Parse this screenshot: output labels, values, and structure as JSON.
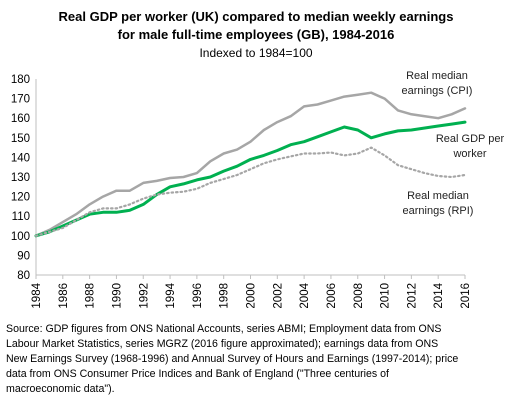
{
  "chart_data": {
    "type": "line",
    "title_lines": [
      "Real GDP per worker (UK) compared to median weekly earnings",
      "for male full-time employees (GB), 1984-2016"
    ],
    "subtitle": "Indexed to 1984=100",
    "x_ticks": [
      "1984",
      "1986",
      "1988",
      "1990",
      "1992",
      "1994",
      "1996",
      "1998",
      "2000",
      "2002",
      "2004",
      "2006",
      "2008",
      "2010",
      "2012",
      "2014",
      "2016"
    ],
    "y_ticks": [
      "80",
      "90",
      "100",
      "110",
      "120",
      "130",
      "140",
      "150",
      "160",
      "170",
      "180"
    ],
    "xlim": [
      1984,
      2016
    ],
    "ylim": [
      80,
      180
    ],
    "grid": false,
    "series": [
      {
        "name_lines": [
          "Real median",
          "earnings (CPI)"
        ],
        "color": "#a6a6a6",
        "style": "solid",
        "x": [
          1984,
          1985,
          1986,
          1987,
          1988,
          1989,
          1990,
          1991,
          1992,
          1993,
          1994,
          1995,
          1996,
          1997,
          1998,
          1999,
          2000,
          2001,
          2002,
          2003,
          2004,
          2005,
          2006,
          2007,
          2008,
          2009,
          2010,
          2011,
          2012,
          2013,
          2014,
          2015,
          2016
        ],
        "values": [
          100,
          103,
          107,
          111,
          116,
          120,
          123,
          123,
          127,
          128,
          129.5,
          130,
          132,
          138,
          142,
          144,
          148,
          154,
          158,
          161,
          166,
          167,
          169,
          171,
          172,
          173,
          170,
          164,
          162,
          161,
          160,
          162,
          165
        ]
      },
      {
        "name_lines": [
          "Real GDP per",
          "worker"
        ],
        "color": "#00b050",
        "style": "solid",
        "x": [
          1984,
          1985,
          1986,
          1987,
          1988,
          1989,
          1990,
          1991,
          1992,
          1993,
          1994,
          1995,
          1996,
          1997,
          1998,
          1999,
          2000,
          2001,
          2002,
          2003,
          2004,
          2005,
          2006,
          2007,
          2008,
          2009,
          2010,
          2011,
          2012,
          2013,
          2014,
          2015,
          2016
        ],
        "values": [
          100,
          102,
          105,
          108,
          111,
          112,
          112,
          113,
          116,
          121,
          125,
          126.5,
          128.5,
          130,
          133,
          135.5,
          139,
          141,
          143.5,
          146.5,
          148,
          150.5,
          153,
          155.5,
          154,
          150,
          152,
          153.5,
          154,
          155,
          156,
          157,
          158
        ]
      },
      {
        "name_lines": [
          "Real median",
          "earnings (RPI)"
        ],
        "color": "#a6a6a6",
        "style": "dotted",
        "x": [
          1984,
          1985,
          1986,
          1987,
          1988,
          1989,
          1990,
          1991,
          1992,
          1993,
          1994,
          1995,
          1996,
          1997,
          1998,
          1999,
          2000,
          2001,
          2002,
          2003,
          2004,
          2005,
          2006,
          2007,
          2008,
          2009,
          2010,
          2011,
          2012,
          2013,
          2014,
          2015,
          2016
        ],
        "values": [
          100,
          102,
          104,
          108,
          112,
          114,
          114,
          116,
          119,
          121,
          122,
          122.5,
          124,
          127,
          129,
          131,
          134,
          137,
          139,
          140.5,
          142,
          142,
          142.5,
          141,
          142,
          145,
          141,
          136,
          134,
          132,
          130.5,
          130,
          131
        ]
      }
    ],
    "source_lines": [
      "Source: GDP figures from ONS National Accounts, series ABMI; Employment data from ONS",
      "Labour Market Statistics, series MGRZ (2016 figure approximated); earnings data from ONS",
      "New Earnings Survey (1968-1996) and Annual Survey of Hours and Earnings (1997-2014); price",
      "data from ONS Consumer Price Indices and Bank of England (\"Three centuries of",
      "macroeconomic data\")."
    ]
  }
}
